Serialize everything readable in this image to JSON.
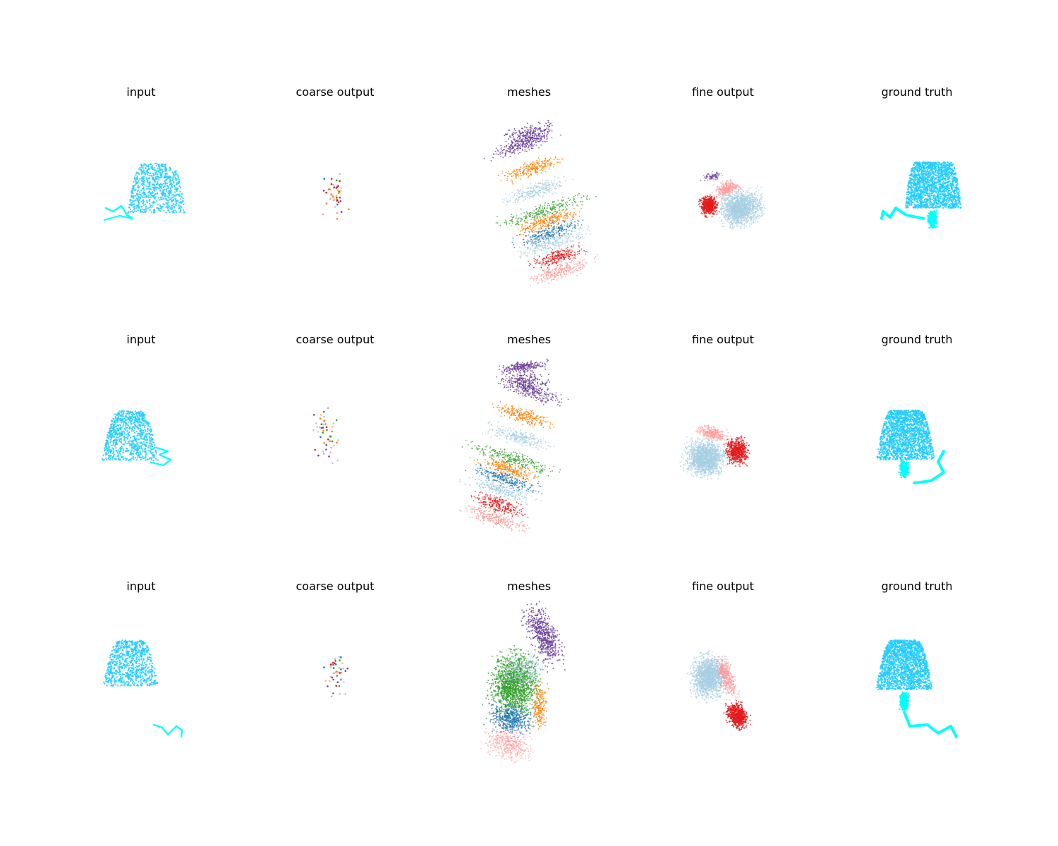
{
  "figure": {
    "rows": [
      {
        "titles": [
          "input",
          "coarse output",
          "meshes",
          "fine output",
          "ground truth"
        ]
      },
      {
        "titles": [
          "input",
          "coarse output",
          "meshes",
          "fine output",
          "ground truth"
        ]
      },
      {
        "titles": [
          "input",
          "coarse output",
          "meshes",
          "fine output",
          "ground truth"
        ]
      }
    ],
    "palette": {
      "light_blue": "#a6cee3",
      "blue": "#1f78b4",
      "light_green": "#b2df8a",
      "green": "#33a02c",
      "pink": "#fb9a99",
      "red": "#e31a1c",
      "light_orange": "#fdbf6f",
      "orange": "#ff7f00",
      "lavender": "#cab2d6",
      "purple": "#6a3d9a",
      "cyan": "#00ffff",
      "sky": "#22ccff"
    }
  }
}
